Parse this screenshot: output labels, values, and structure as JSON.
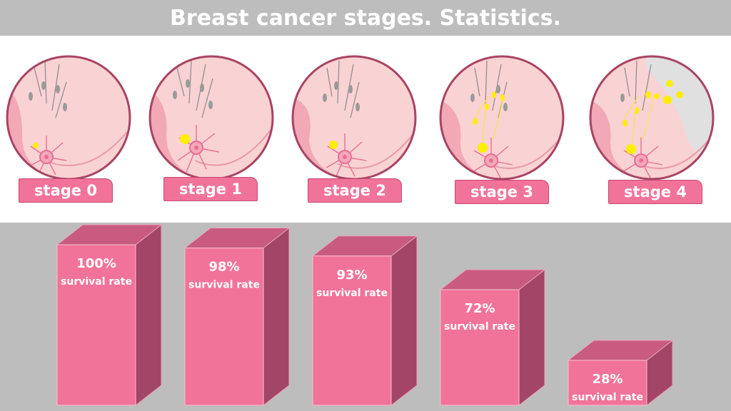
{
  "title": "Breast cancer stages. Statistics.",
  "stages": [
    {
      "label": "stage 0"
    },
    {
      "label": "stage 1"
    },
    {
      "label": "stage 2"
    },
    {
      "label": "stage 3"
    },
    {
      "label": "stage 4"
    }
  ],
  "colors": {
    "title_bar": "#bdbdbd",
    "bar_front": "#f27399",
    "bar_top": "#c95b80",
    "bar_side": "#a34566",
    "label_bg": "#f27399",
    "circle_fill": "#f9d2d4",
    "circle_border": "#a84462",
    "tumor": "#ffee00"
  },
  "chart_data": {
    "type": "bar",
    "categories": [
      "stage 0",
      "stage 1",
      "stage 2",
      "stage 3",
      "stage 4"
    ],
    "values": [
      100,
      98,
      93,
      72,
      28
    ],
    "value_labels": [
      "100%",
      "98%",
      "93%",
      "72%",
      "28%"
    ],
    "bar_caption": "survival rate",
    "ylim": [
      0,
      100
    ],
    "title": "",
    "xlabel": "",
    "ylabel": ""
  }
}
